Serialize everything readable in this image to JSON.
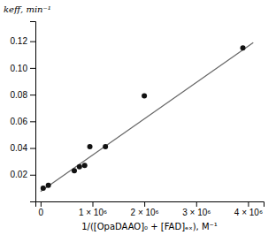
{
  "chart_data": {
    "type": "scatter",
    "xlabel": "1/([OpaDAAO]₀ + [FAD]ₑₓ), M⁻¹",
    "ylabel": "keff, min⁻¹",
    "xlim": [
      -100000,
      4300000
    ],
    "ylim": [
      0,
      0.135
    ],
    "xticks": [
      0,
      {
        "value": 1000000,
        "label": "1 × 10⁶"
      },
      {
        "value": 2000000,
        "label": "2 × 10⁶"
      },
      {
        "value": 3000000,
        "label": "3 × 10⁶"
      },
      {
        "value": 4000000,
        "label": "4 × 10⁶"
      }
    ],
    "yticks": [
      0.02,
      0.04,
      0.06,
      0.08,
      {
        "value": 0.1,
        "label": "0.10"
      },
      0.12
    ],
    "grid": false,
    "series": [
      {
        "type": "line",
        "color": "#666666",
        "x": [
          0,
          4100000
        ],
        "values": [
          0.0075,
          0.11902
        ]
      },
      {
        "type": "scatter",
        "color": "#111111",
        "x": [
          50000,
          150000,
          650000,
          750000,
          850000,
          950000,
          1250000,
          2000000,
          3900000
        ],
        "values": [
          0.01,
          0.012,
          0.023,
          0.026,
          0.027,
          0.041,
          0.041,
          0.079,
          0.115
        ]
      }
    ]
  }
}
